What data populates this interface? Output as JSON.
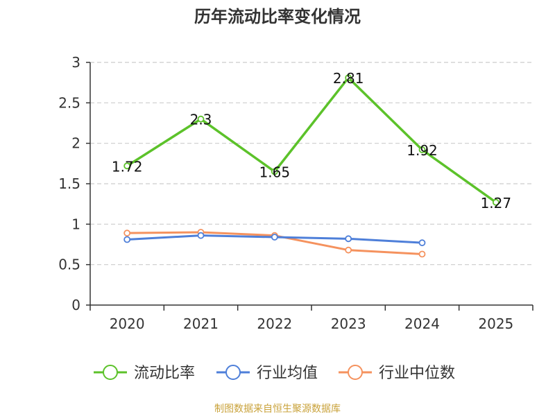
{
  "chart_data": {
    "type": "line",
    "title": "历年流动比率变化情况",
    "categories": [
      "2020",
      "2021",
      "2022",
      "2023",
      "2024",
      "2025"
    ],
    "ylim": [
      0,
      3
    ],
    "yticks": [
      "0",
      "0.5",
      "1",
      "1.5",
      "2",
      "2.5",
      "3"
    ],
    "grid": true,
    "legend_position": "bottom",
    "series": [
      {
        "name": "流动比率",
        "color": "#5cc22a",
        "values": [
          1.72,
          2.3,
          1.65,
          2.81,
          1.92,
          1.27
        ],
        "labels": [
          "1.72",
          "2.3",
          "1.65",
          "2.81",
          "1.92",
          "1.27"
        ]
      },
      {
        "name": "行业均值",
        "color": "#4e7fd9",
        "values": [
          0.81,
          0.86,
          0.84,
          0.82,
          0.77,
          null
        ]
      },
      {
        "name": "行业中位数",
        "color": "#f5925e",
        "values": [
          0.89,
          0.9,
          0.86,
          0.68,
          0.63,
          null
        ]
      }
    ]
  },
  "footer": {
    "source": "制图数据来自恒生聚源数据库",
    "color": "#c9a23a"
  }
}
